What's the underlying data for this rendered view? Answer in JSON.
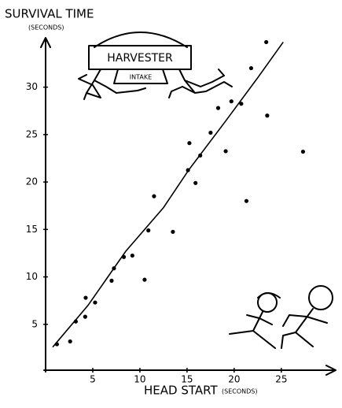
{
  "chart_data": {
    "type": "scatter",
    "ylabel": "SURVIVAL TIME",
    "ylabel_unit": "(SECONDS)",
    "xlabel": "HEAD START",
    "xlabel_unit": "(SECONDS)",
    "annotations": [
      "HARVESTER",
      "INTAKE"
    ],
    "x": [
      1.2,
      2.6,
      3.2,
      4.25,
      4.2,
      5.25,
      7.0,
      7.25,
      8.3,
      9.2,
      10.5,
      10.9,
      11.5,
      13.5,
      15.1,
      15.25,
      15.9,
      16.4,
      17.5,
      18.3,
      19.1,
      19.7,
      20.75,
      21.3,
      21.8,
      23.5,
      23.4,
      27.3
    ],
    "values": [
      2.9,
      3.2,
      5.3,
      7.8,
      5.8,
      7.3,
      9.6,
      10.9,
      12.1,
      12.25,
      9.7,
      14.9,
      18.5,
      14.75,
      21.25,
      24.1,
      19.9,
      22.8,
      25.2,
      27.8,
      23.25,
      28.5,
      28.25,
      18.0,
      32.0,
      27.0,
      34.75,
      23.2
    ],
    "color": "#000000",
    "fit": {
      "x": [
        0.75,
        4.5,
        8.5,
        12.5,
        15.2,
        19.0,
        22.5,
        25.2
      ],
      "values": [
        2.6,
        7.0,
        12.7,
        17.3,
        21.3,
        26.3,
        31.0,
        34.75
      ]
    },
    "xlim": [
      0,
      30.6
    ],
    "ylim": [
      0,
      35.2
    ],
    "xticks": [
      5,
      10,
      15,
      20,
      25
    ],
    "yticks": [
      5,
      10,
      15,
      20,
      25,
      30
    ]
  }
}
